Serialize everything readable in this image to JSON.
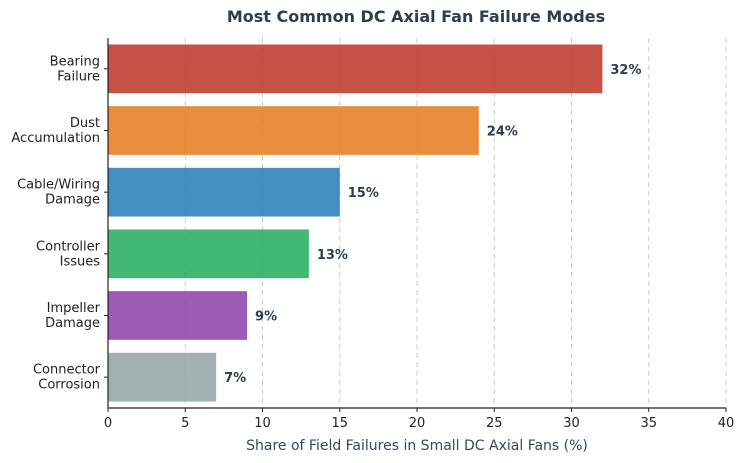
{
  "chart_data": {
    "type": "bar",
    "orientation": "horizontal",
    "title": "Most Common DC Axial Fan Failure Modes",
    "xlabel": "Share of Field Failures in Small DC Axial Fans (%)",
    "ylabel": "",
    "xlim": [
      0,
      40
    ],
    "xticks": [
      "0",
      "5",
      "10",
      "15",
      "20",
      "25",
      "30",
      "35",
      "40"
    ],
    "grid": "vertical dashed",
    "categories": [
      [
        "Bearing",
        "Failure"
      ],
      [
        "Dust",
        "Accumulation"
      ],
      [
        "Cable/Wiring",
        "Damage"
      ],
      [
        "Controller",
        "Issues"
      ],
      [
        "Impeller",
        "Damage"
      ],
      [
        "Connector",
        "Corrosion"
      ]
    ],
    "values": [
      32,
      24,
      15,
      13,
      9,
      7
    ],
    "data_labels": [
      "32%",
      "24%",
      "15%",
      "13%",
      "9%",
      "7%"
    ],
    "colors": [
      "#c0392b",
      "#e67e22",
      "#2980b9",
      "#27ae60",
      "#8e44ad",
      "#95a5a6"
    ]
  }
}
